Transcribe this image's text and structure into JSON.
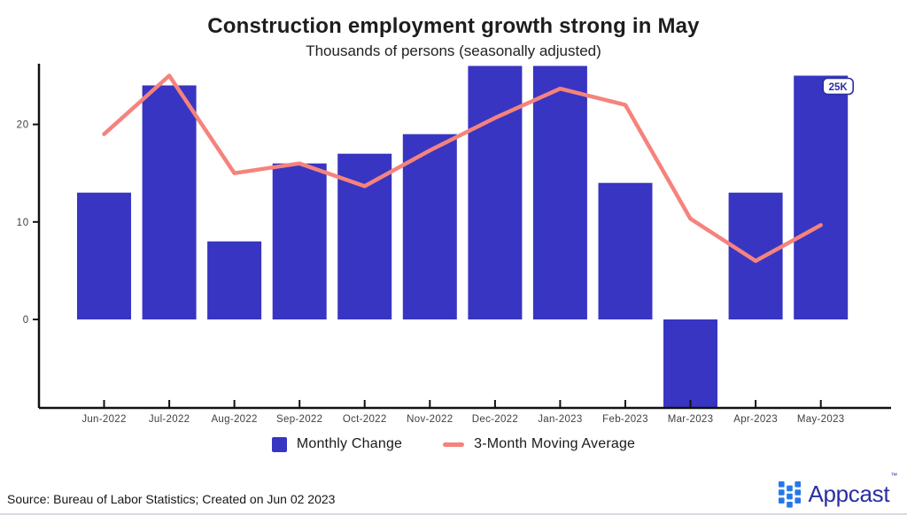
{
  "header": {
    "title": "Construction employment growth strong in May",
    "subtitle": "Thousands of persons (seasonally adjusted)"
  },
  "chart_data": {
    "type": "bar",
    "title": "Construction employment growth strong in May",
    "subtitle": "Thousands of persons (seasonally adjusted)",
    "categories": [
      "Jun-2022",
      "Jul-2022",
      "Aug-2022",
      "Sep-2022",
      "Oct-2022",
      "Nov-2022",
      "Dec-2022",
      "Jan-2023",
      "Feb-2023",
      "Mar-2023",
      "Apr-2023",
      "May-2023"
    ],
    "series": [
      {
        "name": "Monthly Change",
        "type": "bar",
        "color": "#3835C2",
        "values": [
          13,
          24,
          8,
          16,
          17,
          19,
          26,
          26,
          14,
          -9,
          13,
          25
        ]
      },
      {
        "name": "3-Month Moving Average",
        "type": "line",
        "color": "#F5837D",
        "values": [
          19,
          25,
          15,
          16,
          13.67,
          17.33,
          20.67,
          23.67,
          22,
          10.33,
          6,
          9.67
        ]
      }
    ],
    "xlabel": "",
    "ylabel": "",
    "yticks": [
      0,
      10,
      20
    ],
    "ylim": [
      -9.3,
      26.3
    ],
    "grid": false,
    "legend_position": "bottom",
    "annotation": {
      "text": "25K",
      "category": "May-2023"
    },
    "axis_color": "#111111",
    "tick_label_color": "#3f3f3f",
    "annotation_color": "#2A2F9E"
  },
  "legend": {
    "items": [
      {
        "label": "Monthly Change",
        "shape": "square",
        "color": "#3835C2"
      },
      {
        "label": "3-Month Moving Average",
        "shape": "dash",
        "color": "#F5837D"
      }
    ]
  },
  "footer": {
    "source": "Source: Bureau of Labor Statistics; Created on Jun 02 2023",
    "brand": {
      "name": "Appcast",
      "tm": "™",
      "icon_color": "#2478E8",
      "text_color": "#2A2FA2"
    }
  }
}
